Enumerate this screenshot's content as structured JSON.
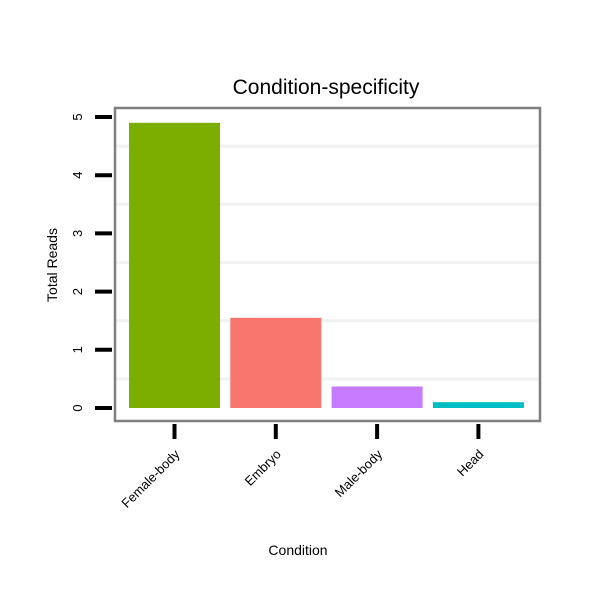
{
  "chart_data": {
    "type": "bar",
    "title": "Condition-specificity",
    "xlabel": "Condition",
    "ylabel": "Total Reads",
    "categories": [
      "Female-body",
      "Embryo",
      "Male-body",
      "Head"
    ],
    "values": [
      4.9,
      1.55,
      0.37,
      0.1
    ],
    "colors": [
      "#7CAE00",
      "#F8766D",
      "#C77CFF",
      "#00BFC4"
    ],
    "ylim": [
      0,
      5
    ],
    "yticks": [
      "0",
      "1",
      "2",
      "3",
      "4",
      "5"
    ],
    "grid": true,
    "legend": "none"
  }
}
